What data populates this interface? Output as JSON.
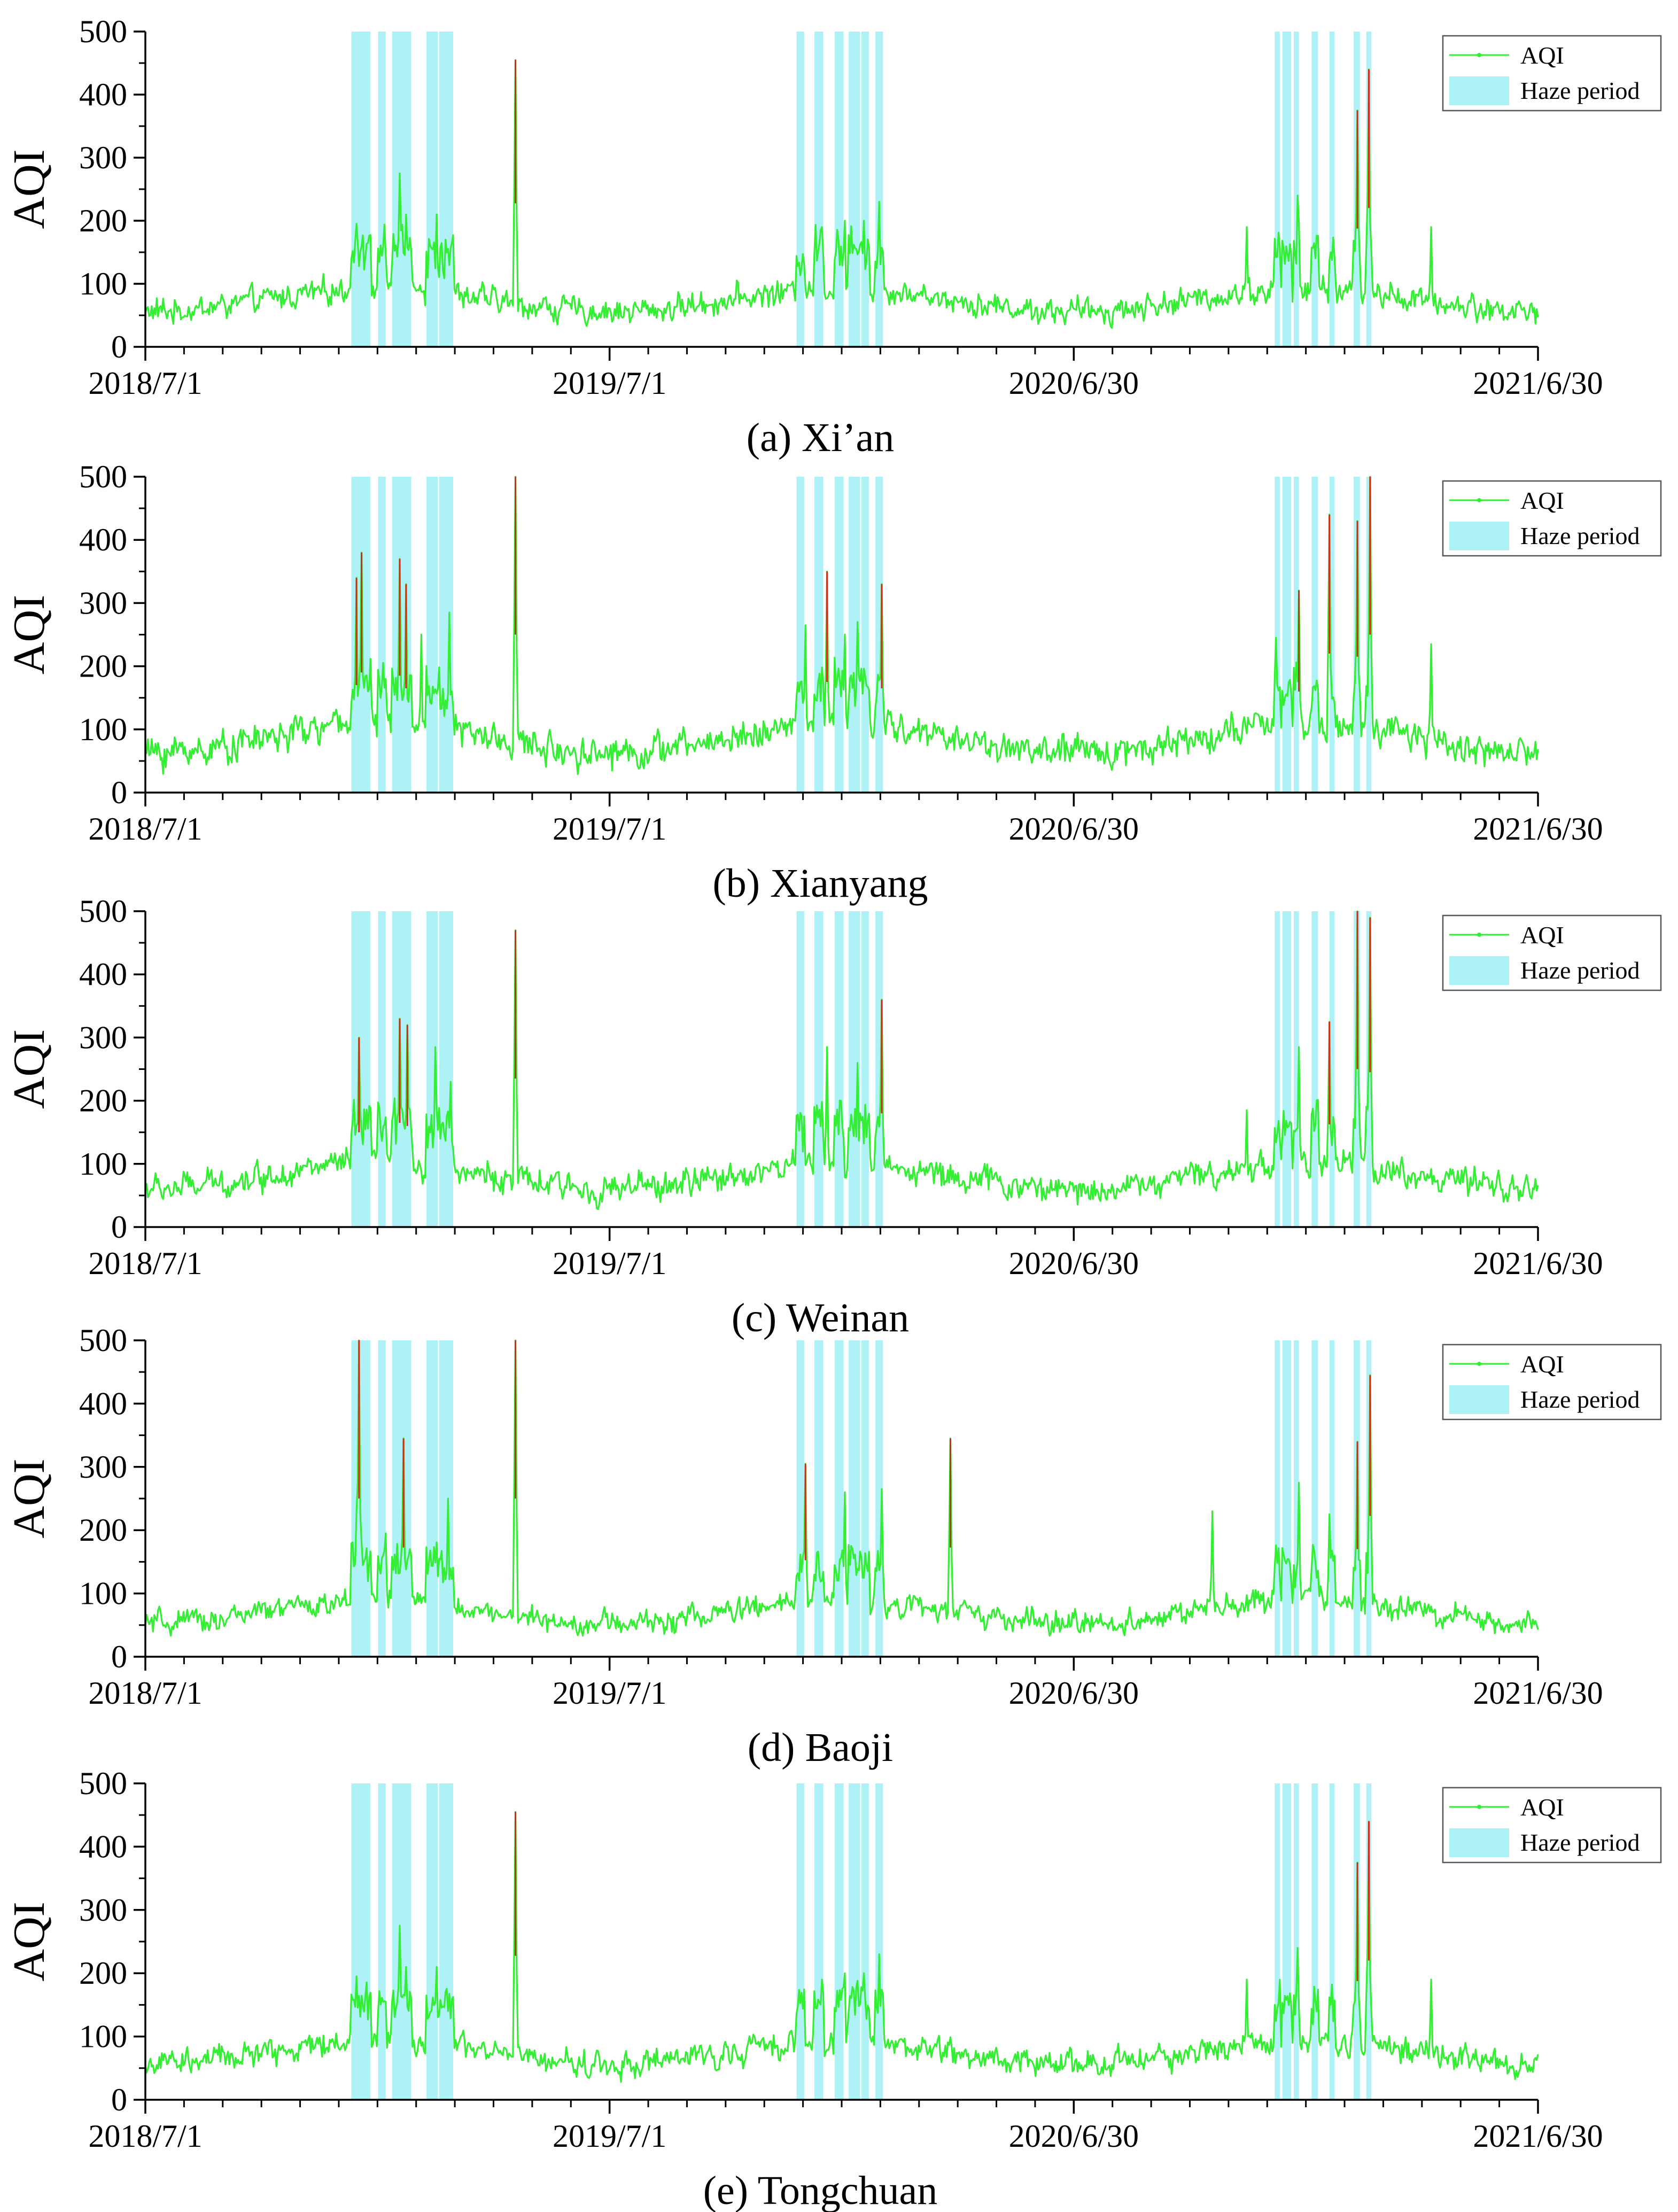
{
  "figure": {
    "date_start": "2018-07-01",
    "date_end": "2021-06-30",
    "colors": {
      "aqi_line": "#33ee33",
      "aqi_peak": "#d42a1a",
      "haze_fill": "#aef2f7",
      "axis": "#000000"
    },
    "legend": {
      "aqi_label": "AQI",
      "haze_label": "Haze period",
      "position": "top-right"
    }
  },
  "chart_data": [
    {
      "type": "line",
      "caption": "(a) Xi’an",
      "ylabel": "AQI",
      "xlabel": "",
      "ylim": [
        0,
        500
      ],
      "yticks": [
        0,
        100,
        200,
        300,
        400,
        500
      ],
      "xtick_labels": [
        "2018/7/1",
        "2019/7/1",
        "2020/6/30",
        "2021/6/30"
      ],
      "haze_periods": [
        [
          "2018-12-10",
          "2018-12-25"
        ],
        [
          "2018-12-31",
          "2019-01-06"
        ],
        [
          "2019-01-11",
          "2019-01-26"
        ],
        [
          "2019-02-07",
          "2019-02-16"
        ],
        [
          "2019-02-17",
          "2019-02-28"
        ],
        [
          "2019-11-25",
          "2019-12-01"
        ],
        [
          "2019-12-09",
          "2019-12-16"
        ],
        [
          "2019-12-25",
          "2020-01-01"
        ],
        [
          "2020-01-05",
          "2020-01-14"
        ],
        [
          "2020-01-15",
          "2020-01-21"
        ],
        [
          "2020-01-26",
          "2020-02-01"
        ],
        [
          "2020-12-05",
          "2020-12-09"
        ],
        [
          "2020-12-11",
          "2020-12-18"
        ],
        [
          "2020-12-20",
          "2020-12-24"
        ],
        [
          "2021-01-03",
          "2021-01-08"
        ],
        [
          "2021-01-17",
          "2021-01-21"
        ],
        [
          "2021-02-05",
          "2021-02-10"
        ],
        [
          "2021-02-15",
          "2021-02-19"
        ]
      ],
      "series": {
        "base": 74,
        "amplitude": 18,
        "noise": 26,
        "peaks": [
          {
            "date": "2018-12-14",
            "value": 195
          },
          {
            "date": "2019-01-17",
            "value": 275
          },
          {
            "date": "2019-01-22",
            "value": 210
          },
          {
            "date": "2019-02-15",
            "value": 210
          },
          {
            "date": "2019-02-22",
            "value": 170
          },
          {
            "date": "2019-04-18",
            "value": 455
          },
          {
            "date": "2019-12-15",
            "value": 190
          },
          {
            "date": "2020-01-02",
            "value": 200
          },
          {
            "date": "2020-01-17",
            "value": 200
          },
          {
            "date": "2020-01-29",
            "value": 230
          },
          {
            "date": "2020-11-13",
            "value": 190
          },
          {
            "date": "2020-12-23",
            "value": 240
          },
          {
            "date": "2021-01-18",
            "value": 150
          },
          {
            "date": "2021-02-08",
            "value": 375
          },
          {
            "date": "2021-02-17",
            "value": 440
          },
          {
            "date": "2021-04-07",
            "value": 190
          }
        ]
      }
    },
    {
      "type": "line",
      "caption": "(b) Xianyang",
      "ylabel": "AQI",
      "xlabel": "",
      "ylim": [
        0,
        500
      ],
      "yticks": [
        0,
        100,
        200,
        300,
        400,
        500
      ],
      "xtick_labels": [
        "2018/7/1",
        "2019/7/1",
        "2020/6/30",
        "2021/6/30"
      ],
      "haze_periods": [
        [
          "2018-12-10",
          "2018-12-25"
        ],
        [
          "2018-12-31",
          "2019-01-06"
        ],
        [
          "2019-01-11",
          "2019-01-26"
        ],
        [
          "2019-02-07",
          "2019-02-16"
        ],
        [
          "2019-02-17",
          "2019-02-28"
        ],
        [
          "2019-11-25",
          "2019-12-01"
        ],
        [
          "2019-12-09",
          "2019-12-16"
        ],
        [
          "2019-12-25",
          "2020-01-01"
        ],
        [
          "2020-01-05",
          "2020-01-14"
        ],
        [
          "2020-01-15",
          "2020-01-21"
        ],
        [
          "2020-01-26",
          "2020-02-01"
        ],
        [
          "2020-12-05",
          "2020-12-09"
        ],
        [
          "2020-12-11",
          "2020-12-18"
        ],
        [
          "2020-12-20",
          "2020-12-24"
        ],
        [
          "2021-01-03",
          "2021-01-08"
        ],
        [
          "2021-01-17",
          "2021-01-21"
        ],
        [
          "2021-02-05",
          "2021-02-10"
        ],
        [
          "2021-02-15",
          "2021-02-19"
        ]
      ],
      "series": {
        "base": 85,
        "amplitude": 22,
        "noise": 32,
        "peaks": [
          {
            "date": "2018-12-14",
            "value": 340
          },
          {
            "date": "2018-12-18",
            "value": 380
          },
          {
            "date": "2019-01-17",
            "value": 370
          },
          {
            "date": "2019-01-22",
            "value": 330
          },
          {
            "date": "2019-02-03",
            "value": 250
          },
          {
            "date": "2019-02-25",
            "value": 285
          },
          {
            "date": "2019-04-18",
            "value": 500
          },
          {
            "date": "2019-12-02",
            "value": 265
          },
          {
            "date": "2019-12-19",
            "value": 350
          },
          {
            "date": "2020-01-02",
            "value": 250
          },
          {
            "date": "2020-01-12",
            "value": 270
          },
          {
            "date": "2020-01-31",
            "value": 330
          },
          {
            "date": "2020-12-06",
            "value": 245
          },
          {
            "date": "2020-12-24",
            "value": 320
          },
          {
            "date": "2021-01-17",
            "value": 440
          },
          {
            "date": "2021-02-08",
            "value": 430
          },
          {
            "date": "2021-02-18",
            "value": 500
          },
          {
            "date": "2021-04-07",
            "value": 235
          }
        ]
      }
    },
    {
      "type": "line",
      "caption": "(c) Weinan",
      "ylabel": "AQI",
      "xlabel": "",
      "ylim": [
        0,
        500
      ],
      "yticks": [
        0,
        100,
        200,
        300,
        400,
        500
      ],
      "xtick_labels": [
        "2018/7/1",
        "2019/7/1",
        "2020/6/30",
        "2021/6/30"
      ],
      "haze_periods": [
        [
          "2018-12-10",
          "2018-12-25"
        ],
        [
          "2018-12-31",
          "2019-01-06"
        ],
        [
          "2019-01-11",
          "2019-01-26"
        ],
        [
          "2019-02-07",
          "2019-02-16"
        ],
        [
          "2019-02-17",
          "2019-02-28"
        ],
        [
          "2019-11-25",
          "2019-12-01"
        ],
        [
          "2019-12-09",
          "2019-12-16"
        ],
        [
          "2019-12-25",
          "2020-01-01"
        ],
        [
          "2020-01-05",
          "2020-01-14"
        ],
        [
          "2020-01-15",
          "2020-01-21"
        ],
        [
          "2020-01-26",
          "2020-02-01"
        ],
        [
          "2020-12-05",
          "2020-12-09"
        ],
        [
          "2020-12-11",
          "2020-12-18"
        ],
        [
          "2020-12-20",
          "2020-12-24"
        ],
        [
          "2021-01-03",
          "2021-01-08"
        ],
        [
          "2021-01-17",
          "2021-01-21"
        ],
        [
          "2021-02-05",
          "2021-02-10"
        ],
        [
          "2021-02-15",
          "2021-02-19"
        ]
      ],
      "series": {
        "base": 80,
        "amplitude": 20,
        "noise": 28,
        "peaks": [
          {
            "date": "2018-12-16",
            "value": 300
          },
          {
            "date": "2019-01-17",
            "value": 330
          },
          {
            "date": "2019-01-23",
            "value": 320
          },
          {
            "date": "2019-02-14",
            "value": 285
          },
          {
            "date": "2019-02-26",
            "value": 230
          },
          {
            "date": "2019-04-18",
            "value": 470
          },
          {
            "date": "2019-12-19",
            "value": 285
          },
          {
            "date": "2020-01-12",
            "value": 260
          },
          {
            "date": "2020-01-31",
            "value": 360
          },
          {
            "date": "2020-11-13",
            "value": 185
          },
          {
            "date": "2020-12-24",
            "value": 285
          },
          {
            "date": "2021-01-17",
            "value": 325
          },
          {
            "date": "2021-02-08",
            "value": 500
          },
          {
            "date": "2021-02-18",
            "value": 490
          }
        ]
      }
    },
    {
      "type": "line",
      "caption": "(d) Baoji",
      "ylabel": "AQI",
      "xlabel": "",
      "ylim": [
        0,
        500
      ],
      "yticks": [
        0,
        100,
        200,
        300,
        400,
        500
      ],
      "xtick_labels": [
        "2018/7/1",
        "2019/7/1",
        "2020/6/30",
        "2021/6/30"
      ],
      "haze_periods": [
        [
          "2018-12-10",
          "2018-12-25"
        ],
        [
          "2018-12-31",
          "2019-01-06"
        ],
        [
          "2019-01-11",
          "2019-01-26"
        ],
        [
          "2019-02-07",
          "2019-02-16"
        ],
        [
          "2019-02-17",
          "2019-02-28"
        ],
        [
          "2019-11-25",
          "2019-12-01"
        ],
        [
          "2019-12-09",
          "2019-12-16"
        ],
        [
          "2019-12-25",
          "2020-01-01"
        ],
        [
          "2020-01-05",
          "2020-01-14"
        ],
        [
          "2020-01-15",
          "2020-01-21"
        ],
        [
          "2020-01-26",
          "2020-02-01"
        ],
        [
          "2020-12-05",
          "2020-12-09"
        ],
        [
          "2020-12-11",
          "2020-12-18"
        ],
        [
          "2020-12-20",
          "2020-12-24"
        ],
        [
          "2021-01-03",
          "2021-01-08"
        ],
        [
          "2021-01-17",
          "2021-01-21"
        ],
        [
          "2021-02-05",
          "2021-02-10"
        ],
        [
          "2021-02-15",
          "2021-02-19"
        ]
      ],
      "series": {
        "base": 70,
        "amplitude": 18,
        "noise": 24,
        "peaks": [
          {
            "date": "2018-12-16",
            "value": 500
          },
          {
            "date": "2018-12-14",
            "value": 230
          },
          {
            "date": "2019-01-20",
            "value": 345
          },
          {
            "date": "2019-02-24",
            "value": 250
          },
          {
            "date": "2019-04-18",
            "value": 500
          },
          {
            "date": "2019-12-02",
            "value": 305
          },
          {
            "date": "2020-01-02",
            "value": 260
          },
          {
            "date": "2020-01-31",
            "value": 265
          },
          {
            "date": "2020-03-25",
            "value": 345
          },
          {
            "date": "2020-10-17",
            "value": 230
          },
          {
            "date": "2020-12-24",
            "value": 275
          },
          {
            "date": "2021-01-17",
            "value": 225
          },
          {
            "date": "2021-02-08",
            "value": 340
          },
          {
            "date": "2021-02-18",
            "value": 445
          }
        ]
      }
    },
    {
      "type": "line",
      "caption": "(e) Tongchuan",
      "ylabel": "AQI",
      "xlabel": "",
      "ylim": [
        0,
        500
      ],
      "yticks": [
        0,
        100,
        200,
        300,
        400,
        500
      ],
      "xtick_labels": [
        "2018/7/1",
        "2019/7/1",
        "2020/6/30",
        "2021/6/30"
      ],
      "haze_periods": [
        [
          "2018-12-10",
          "2018-12-25"
        ],
        [
          "2018-12-31",
          "2019-01-06"
        ],
        [
          "2019-01-11",
          "2019-01-26"
        ],
        [
          "2019-02-07",
          "2019-02-16"
        ],
        [
          "2019-02-17",
          "2019-02-28"
        ],
        [
          "2019-11-25",
          "2019-12-01"
        ],
        [
          "2019-12-09",
          "2019-12-16"
        ],
        [
          "2019-12-25",
          "2020-01-01"
        ],
        [
          "2020-01-05",
          "2020-01-14"
        ],
        [
          "2020-01-15",
          "2020-01-21"
        ],
        [
          "2020-01-26",
          "2020-02-01"
        ],
        [
          "2020-12-05",
          "2020-12-09"
        ],
        [
          "2020-12-11",
          "2020-12-18"
        ],
        [
          "2020-12-20",
          "2020-12-24"
        ],
        [
          "2021-01-03",
          "2021-01-08"
        ],
        [
          "2021-01-17",
          "2021-01-21"
        ],
        [
          "2021-02-05",
          "2021-02-10"
        ],
        [
          "2021-02-15",
          "2021-02-19"
        ]
      ],
      "series": {
        "base": 74,
        "amplitude": 18,
        "noise": 26,
        "peaks": [
          {
            "date": "2018-12-14",
            "value": 195
          },
          {
            "date": "2019-01-17",
            "value": 275
          },
          {
            "date": "2019-01-22",
            "value": 210
          },
          {
            "date": "2019-02-15",
            "value": 210
          },
          {
            "date": "2019-02-22",
            "value": 170
          },
          {
            "date": "2019-04-18",
            "value": 455
          },
          {
            "date": "2019-12-15",
            "value": 190
          },
          {
            "date": "2020-01-02",
            "value": 200
          },
          {
            "date": "2020-01-17",
            "value": 200
          },
          {
            "date": "2020-01-29",
            "value": 230
          },
          {
            "date": "2020-11-13",
            "value": 190
          },
          {
            "date": "2020-12-23",
            "value": 240
          },
          {
            "date": "2021-01-18",
            "value": 150
          },
          {
            "date": "2021-02-08",
            "value": 375
          },
          {
            "date": "2021-02-17",
            "value": 440
          },
          {
            "date": "2021-04-07",
            "value": 190
          }
        ]
      }
    }
  ]
}
